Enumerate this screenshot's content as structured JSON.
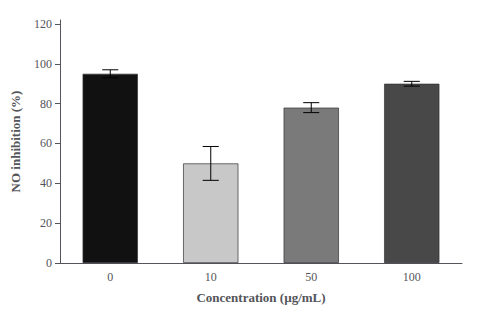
{
  "chart_data": {
    "type": "bar",
    "categories": [
      "0",
      "10",
      "50",
      "100"
    ],
    "values": [
      95.0,
      50.0,
      78.0,
      90.0
    ],
    "errors": [
      2.0,
      8.5,
      2.5,
      1.2
    ],
    "colors": [
      "#111111",
      "#c8c8c8",
      "#7a7a7a",
      "#484848"
    ],
    "xlabel": "Concentration (µg/mL)",
    "ylabel": "NO inhibition (%)",
    "ylim": [
      0,
      122
    ],
    "yticks": [
      0,
      20,
      40,
      60,
      80,
      100,
      120
    ],
    "grid": false
  }
}
